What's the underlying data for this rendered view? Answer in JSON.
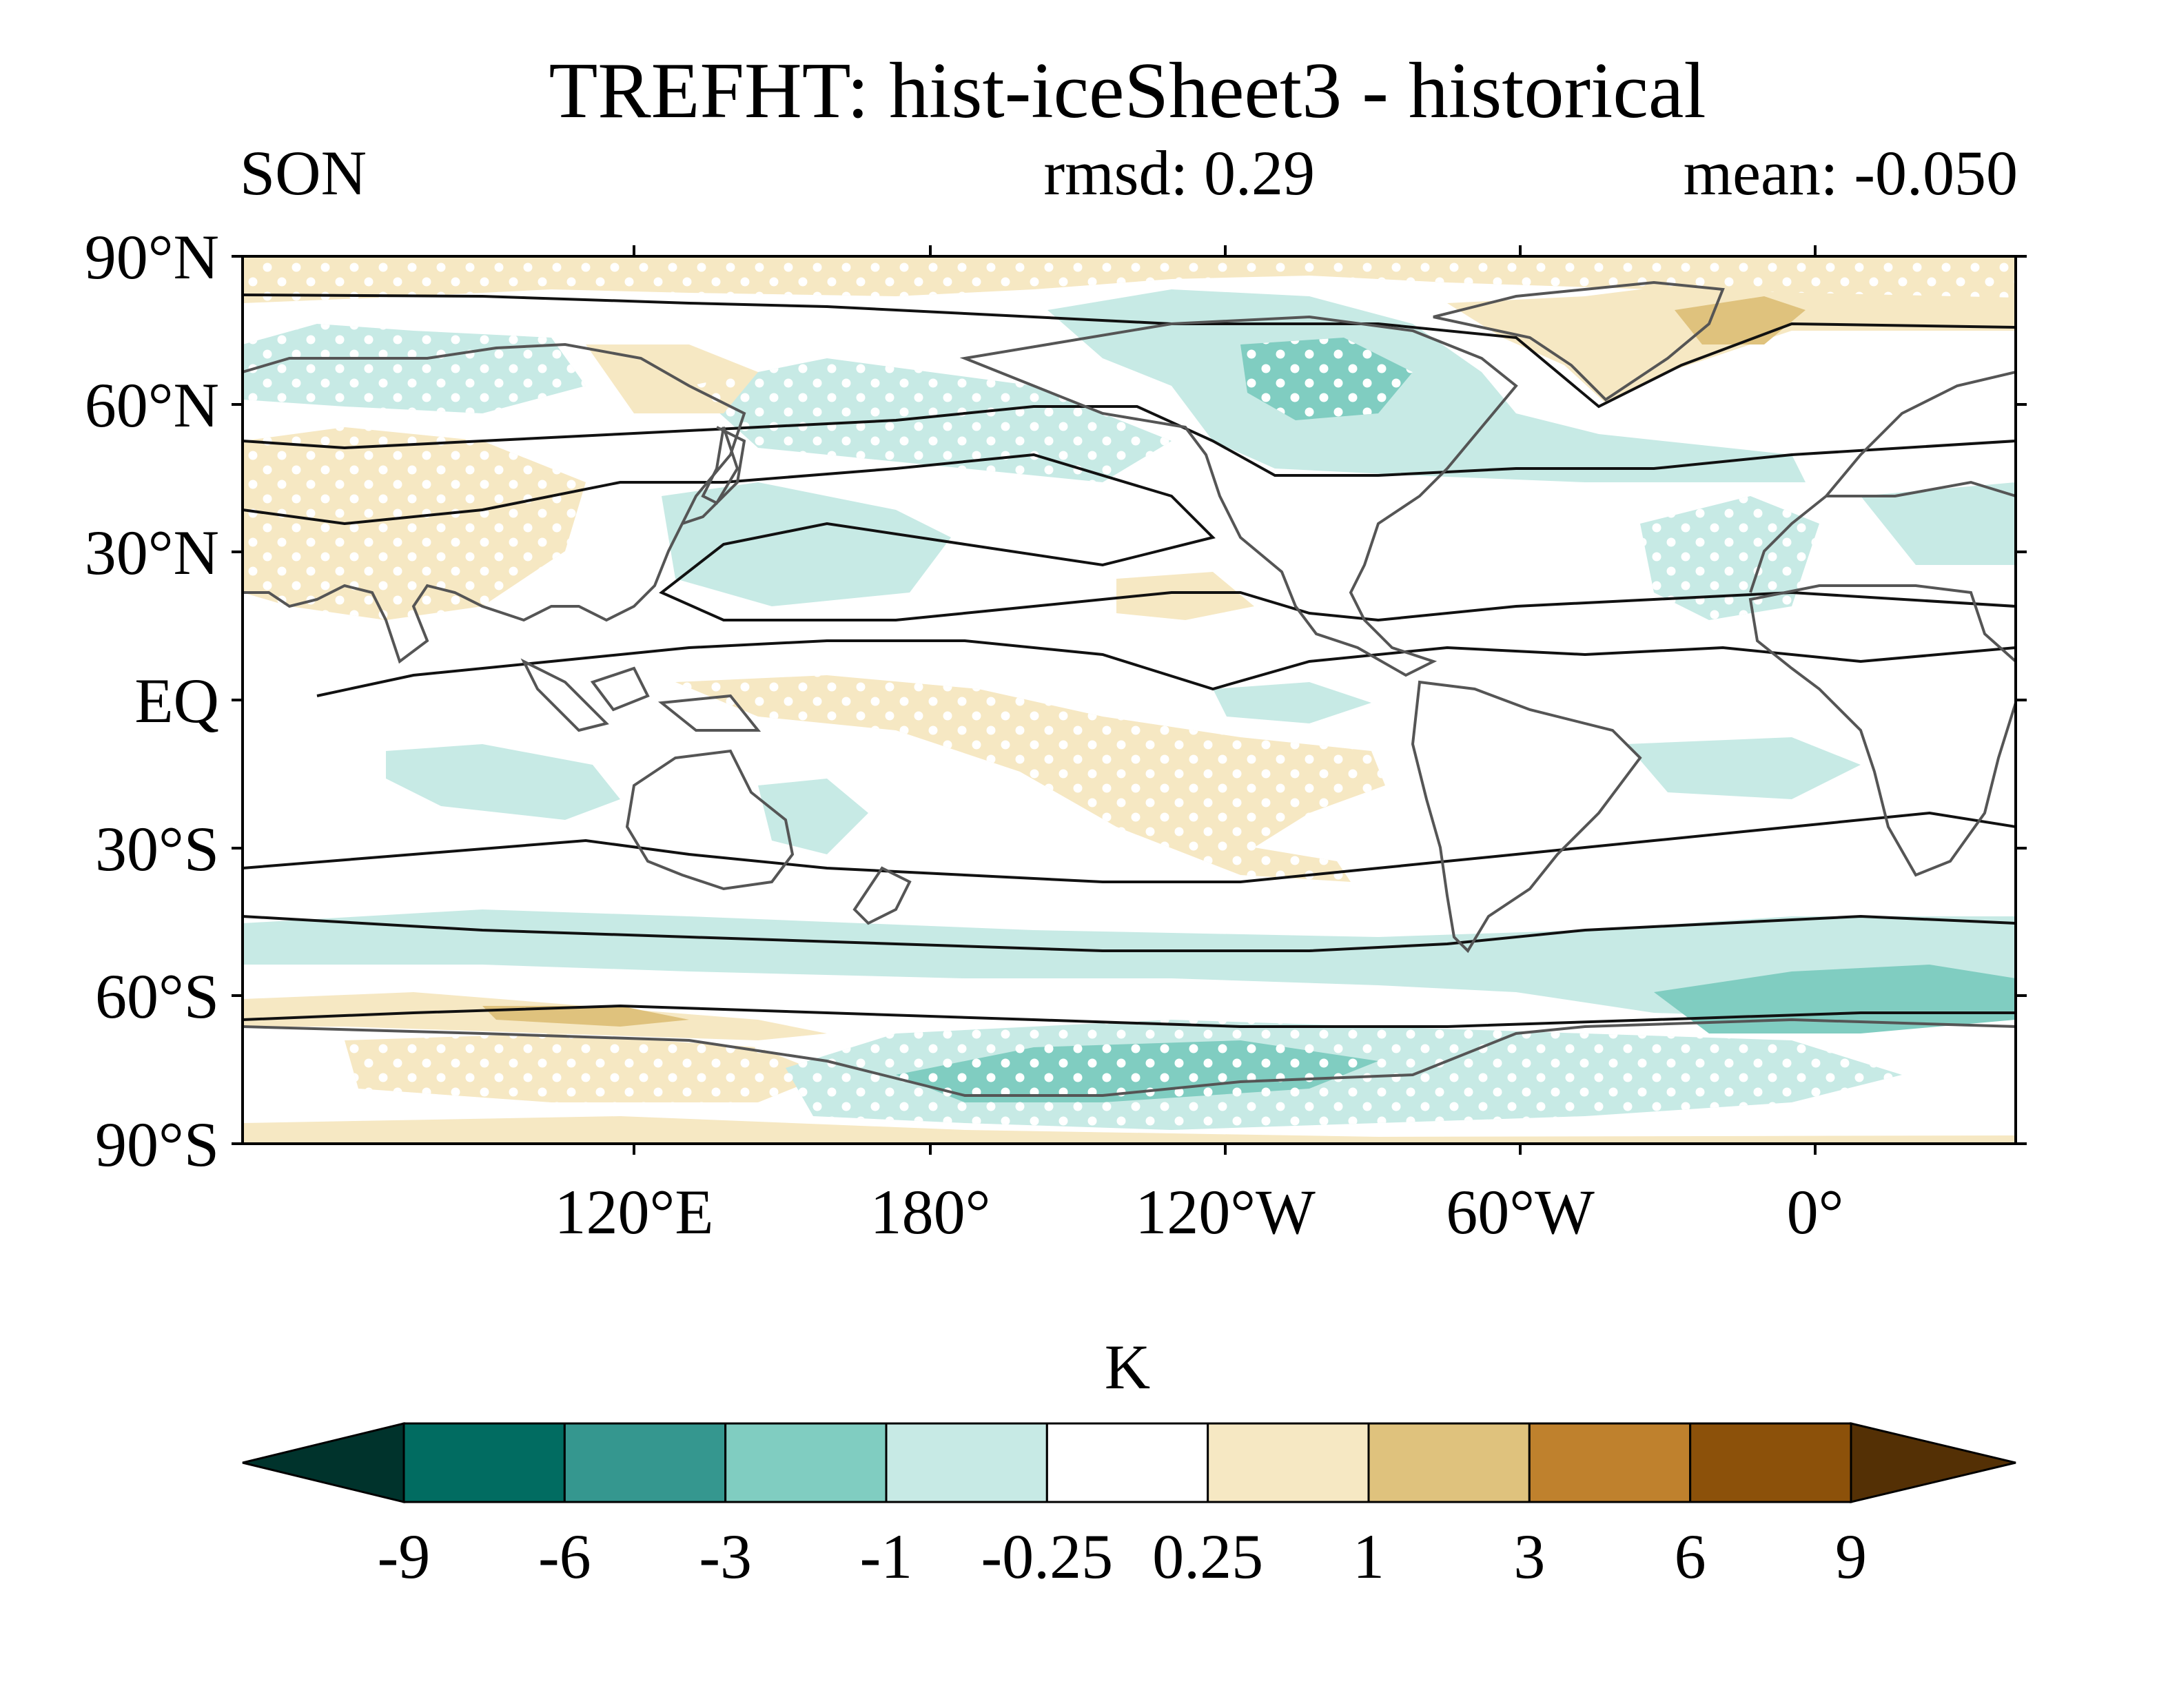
{
  "title": "TREFHT: hist-iceSheet3 - historical",
  "season": "SON",
  "rmsd_label": "rmsd: 0.29",
  "mean_label": "mean: -0.050",
  "lat_labels": [
    "90°N",
    "60°N",
    "30°N",
    "EQ",
    "30°S",
    "60°S",
    "90°S"
  ],
  "lon_labels": [
    "120°E",
    "180°",
    "120°W",
    "60°W",
    "0°"
  ],
  "colorbar": {
    "unit": "K",
    "levels": [
      "-9",
      "-6",
      "-3",
      "-1",
      "-0.25",
      "0.25",
      "1",
      "3",
      "6",
      "9"
    ],
    "colors": [
      "#00332c",
      "#016c61",
      "#35978f",
      "#80cdc1",
      "#c7eae5",
      "#ffffff",
      "#f6e8c3",
      "#dfc27d",
      "#bf812d",
      "#8c510a",
      "#543005"
    ]
  },
  "palette": {
    "coast": "#555555",
    "contour": "#111111",
    "stipple": "#ffffff"
  }
}
